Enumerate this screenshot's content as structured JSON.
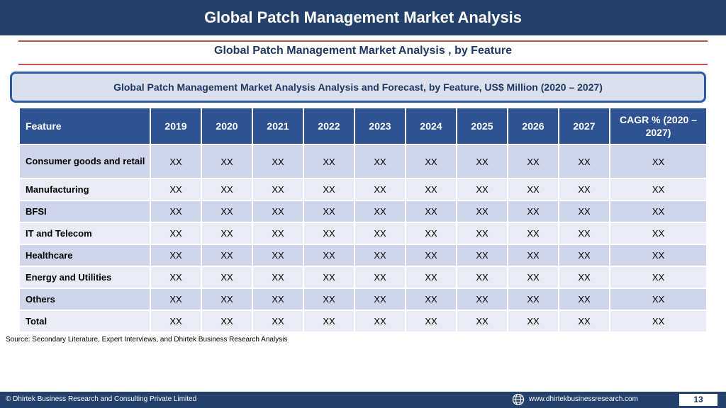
{
  "header": {
    "title": "Global Patch Management Market Analysis"
  },
  "subtitle": "Global Patch Management Market Analysis , by Feature",
  "banner": "Global Patch Management Market Analysis  Analysis and Forecast, by Feature, US$ Million (2020 – 2027)",
  "table": {
    "columns": [
      "Feature",
      "2019",
      "2020",
      "2021",
      "2022",
      "2023",
      "2024",
      "2025",
      "2026",
      "2027",
      "CAGR % (2020 – 2027)"
    ],
    "rows": [
      {
        "feature": "Consumer goods and retail",
        "values": [
          "XX",
          "XX",
          "XX",
          "XX",
          "XX",
          "XX",
          "XX",
          "XX",
          "XX",
          "XX"
        ]
      },
      {
        "feature": "Manufacturing",
        "values": [
          "XX",
          "XX",
          "XX",
          "XX",
          "XX",
          "XX",
          "XX",
          "XX",
          "XX",
          "XX"
        ]
      },
      {
        "feature": "BFSI",
        "values": [
          "XX",
          "XX",
          "XX",
          "XX",
          "XX",
          "XX",
          "XX",
          "XX",
          "XX",
          "XX"
        ]
      },
      {
        "feature": "IT and Telecom",
        "values": [
          "XX",
          "XX",
          "XX",
          "XX",
          "XX",
          "XX",
          "XX",
          "XX",
          "XX",
          "XX"
        ]
      },
      {
        "feature": "Healthcare",
        "values": [
          "XX",
          "XX",
          "XX",
          "XX",
          "XX",
          "XX",
          "XX",
          "XX",
          "XX",
          "XX"
        ]
      },
      {
        "feature": "Energy and Utilities",
        "values": [
          "XX",
          "XX",
          "XX",
          "XX",
          "XX",
          "XX",
          "XX",
          "XX",
          "XX",
          "XX"
        ]
      },
      {
        "feature": "Others",
        "values": [
          "XX",
          "XX",
          "XX",
          "XX",
          "XX",
          "XX",
          "XX",
          "XX",
          "XX",
          "XX"
        ]
      },
      {
        "feature": "Total",
        "values": [
          "XX",
          "XX",
          "XX",
          "XX",
          "XX",
          "XX",
          "XX",
          "XX",
          "XX",
          "XX"
        ]
      }
    ]
  },
  "source": "Source: Secondary Literature, Expert Interviews, and Dhirtek Business Research Analysis",
  "footer": {
    "copyright": "© Dhirtek Business Research and Consulting Private Limited",
    "website": "www.dhirtekbusinessresearch.com",
    "page_number": "13",
    "globe_icon": "globe-icon"
  },
  "colors": {
    "header_bg": "#23416a",
    "table_header": "#2f5293",
    "row_dark": "#cfd5ea",
    "row_light": "#e9ebf5",
    "rule": "#c0504d"
  }
}
